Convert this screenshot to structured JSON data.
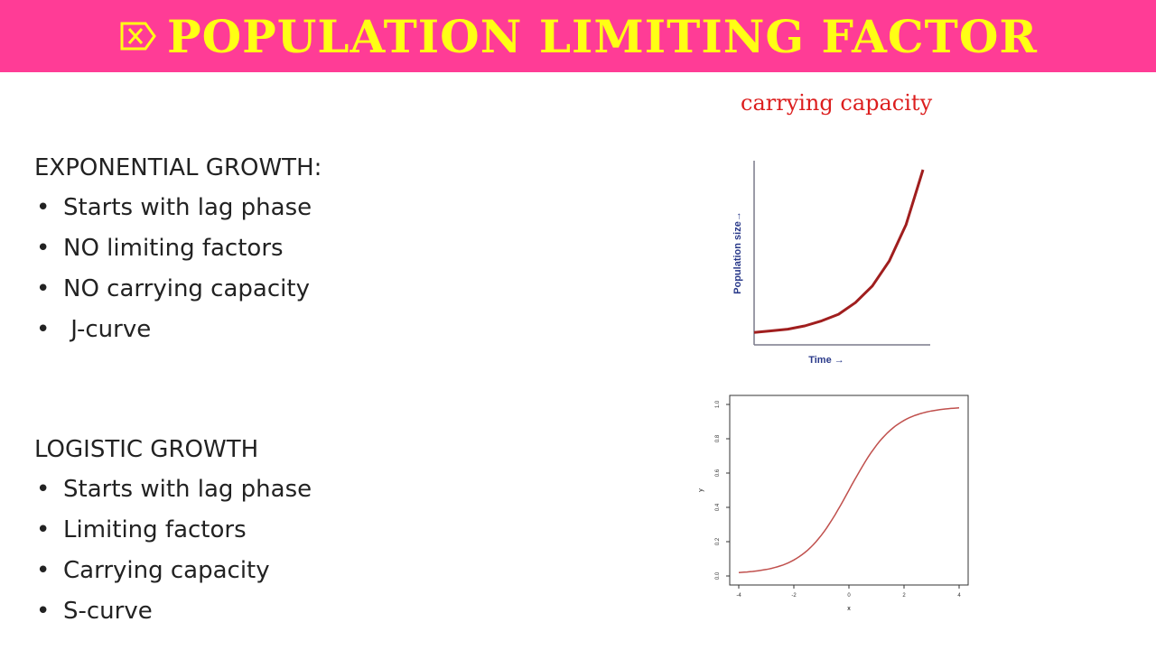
{
  "header": {
    "title": "POPULATION LIMITING FACTOR",
    "icon": "boxed-x-arrow-icon",
    "bg_color": "#ff3c96",
    "title_color": "#ffff14"
  },
  "carrying_capacity_label": "carrying capacity",
  "exponential": {
    "heading": "EXPONENTIAL GROWTH:",
    "items": [
      "Starts with lag phase",
      "NO limiting factors",
      "NO carrying capacity",
      " J-curve"
    ]
  },
  "logistic": {
    "heading": "LOGISTIC GROWTH",
    "items": [
      "Starts with lag phase",
      "Limiting factors",
      "Carrying capacity",
      "S-curve"
    ]
  },
  "chart_data": [
    {
      "type": "line",
      "xlabel": "Time →",
      "ylabel": "Population size→",
      "curve": "exponential",
      "x": [
        0,
        0.1,
        0.2,
        0.3,
        0.4,
        0.5,
        0.6,
        0.7,
        0.8,
        0.9,
        1.0
      ],
      "y": [
        0.02,
        0.03,
        0.04,
        0.06,
        0.09,
        0.13,
        0.2,
        0.3,
        0.45,
        0.67,
        1.0
      ],
      "line_color": "#a01e1e",
      "axis_color": "#7a7a8a",
      "label_color": "#2a3a8a"
    },
    {
      "type": "line",
      "xlabel": "x",
      "ylabel": "y",
      "curve": "logistic",
      "xlim": [
        -4,
        4
      ],
      "ylim": [
        0,
        1
      ],
      "xticks": [
        "-4",
        "-2",
        "0",
        "2",
        "4"
      ],
      "yticks": [
        "0.0",
        "0.2",
        "0.4",
        "0.6",
        "0.8",
        "1.0"
      ],
      "x": [
        -4,
        -3,
        -2,
        -1,
        0,
        1,
        2,
        3,
        4
      ],
      "y": [
        0.02,
        0.05,
        0.12,
        0.27,
        0.5,
        0.73,
        0.88,
        0.95,
        0.98
      ],
      "line_color": "#c0504d",
      "frame_color": "#333333"
    }
  ]
}
